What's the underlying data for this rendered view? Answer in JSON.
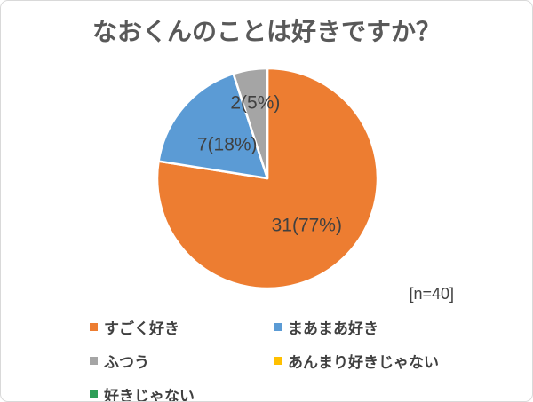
{
  "page": {
    "title": "なおくんのことは好きですか？",
    "sample_note": "[n=40]"
  },
  "chart_data": {
    "type": "pie",
    "title": "なおくんのことは好きですか？",
    "total": 40,
    "categories": [
      "すごく好き",
      "まあまあ好き",
      "ふつう",
      "あんまり好きじゃない",
      "好きじゃない"
    ],
    "values": [
      31,
      7,
      2,
      0,
      0
    ],
    "percent_labels": [
      "77%",
      "18%",
      "5%",
      "",
      ""
    ],
    "data_labels": [
      "31(77%)",
      "7(18%)",
      "2(5%)",
      "",
      ""
    ],
    "colors": [
      "#ED7D31",
      "#5B9BD5",
      "#A5A5A5",
      "#FFC000",
      "#2E9E57"
    ],
    "label_color": "#404040",
    "annotation": "[n=40]",
    "legend_position": "bottom",
    "start_angle_deg": 0,
    "direction": "clockwise",
    "separator_color": "#FFFFFF"
  }
}
